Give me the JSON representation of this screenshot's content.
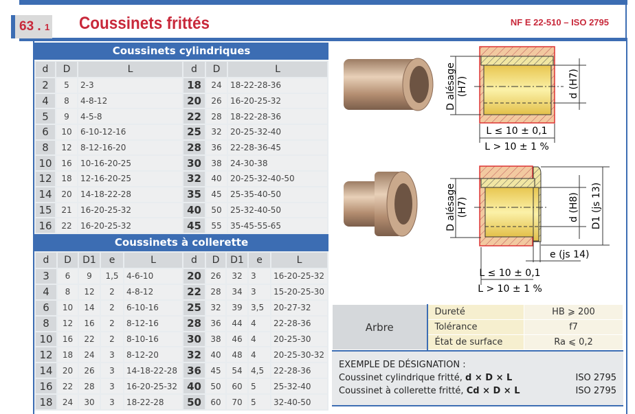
{
  "header": {
    "section_number": "63",
    "section_sub": "1",
    "title": "Coussinets frittés",
    "norm": "NF E 22-510 – ISO 2795"
  },
  "cylindriques": {
    "title": "Coussinets cylindriques",
    "columns": [
      "d",
      "D",
      "L",
      "d",
      "D",
      "L"
    ],
    "rows": [
      [
        "2",
        "5",
        "2-3",
        "18",
        "24",
        "18-22-28-36"
      ],
      [
        "4",
        "8",
        "4-8-12",
        "20",
        "26",
        "16-20-25-32"
      ],
      [
        "5",
        "9",
        "4-5-8",
        "22",
        "28",
        "18-22-28-36"
      ],
      [
        "6",
        "10",
        "6-10-12-16",
        "25",
        "32",
        "20-25-32-40"
      ],
      [
        "8",
        "12",
        "8-12-16-20",
        "28",
        "36",
        "22-28-36-45"
      ],
      [
        "10",
        "16",
        "10-16-20-25",
        "30",
        "38",
        "24-30-38"
      ],
      [
        "12",
        "18",
        "12-16-20-25",
        "32",
        "40",
        "20-25-32-40-50"
      ],
      [
        "14",
        "20",
        "14-18-22-28",
        "35",
        "45",
        "25-35-40-50"
      ],
      [
        "15",
        "21",
        "16-20-25-32",
        "40",
        "50",
        "25-32-40-50"
      ],
      [
        "16",
        "22",
        "16-20-25-32",
        "45",
        "55",
        "35-45-55-65"
      ]
    ]
  },
  "collerette": {
    "title": "Coussinets à collerette",
    "columns": [
      "d",
      "D",
      "D1",
      "e",
      "L",
      "d",
      "D",
      "D1",
      "e",
      "L"
    ],
    "rows": [
      [
        "3",
        "6",
        "9",
        "1,5",
        "4-6-10",
        "20",
        "26",
        "32",
        "3",
        "16-20-25-32"
      ],
      [
        "4",
        "8",
        "12",
        "2",
        "4-8-12",
        "22",
        "28",
        "34",
        "3",
        "15-20-25-30"
      ],
      [
        "6",
        "10",
        "14",
        "2",
        "6-10-16",
        "25",
        "32",
        "39",
        "3,5",
        "20-27-32"
      ],
      [
        "8",
        "12",
        "16",
        "2",
        "8-12-16",
        "28",
        "36",
        "44",
        "4",
        "22-28-36"
      ],
      [
        "10",
        "16",
        "22",
        "2",
        "8-10-16",
        "30",
        "38",
        "46",
        "4",
        "20-25-30"
      ],
      [
        "12",
        "18",
        "24",
        "3",
        "8-12-20",
        "32",
        "40",
        "48",
        "4",
        "20-25-30-32"
      ],
      [
        "14",
        "20",
        "26",
        "3",
        "14-18-22-28",
        "36",
        "45",
        "54",
        "4,5",
        "22-28-36"
      ],
      [
        "16",
        "22",
        "28",
        "3",
        "16-20-25-32",
        "40",
        "50",
        "60",
        "5",
        "25-32-40"
      ],
      [
        "18",
        "24",
        "30",
        "3",
        "18-22-28",
        "50",
        "60",
        "70",
        "5",
        "32-40-50"
      ]
    ]
  },
  "drawing": {
    "cyl": {
      "bore_label": "D alésage",
      "bore_tol": "(H7)",
      "inner": "d (H7)",
      "len1": "L ≤ 10 ± 0,1",
      "len2": "L > 10 ± 1 %"
    },
    "col": {
      "bore_label": "D alésage",
      "bore_tol": "(H7)",
      "inner": "d (H8)",
      "flange": "D1 (js 13)",
      "thick": "e (js 14)",
      "len1": "L ≤ 10 ± 0,1",
      "len2": "L > 10 ± 1 %"
    }
  },
  "arbre": {
    "label": "Arbre",
    "rows": [
      [
        "Dureté",
        "HB ⩾ 200"
      ],
      [
        "Tolérance",
        "f7"
      ],
      [
        "État de surface",
        "Ra ⩽ 0,2"
      ]
    ]
  },
  "exemple": {
    "title": "EXEMPLE DE DÉSIGNATION :",
    "lines": [
      {
        "text": "Coussinet cylindrique fritté, ",
        "formula": "d × D × L",
        "norm": "ISO 2795"
      },
      {
        "text": "Coussinet à collerette fritté, ",
        "formula": "Cd × D × L",
        "norm": "ISO 2795"
      }
    ]
  },
  "colors": {
    "blue": "#3c6db3",
    "red": "#c8283a",
    "bronze": "#c9a27e",
    "yellow": "#f4e27a"
  }
}
